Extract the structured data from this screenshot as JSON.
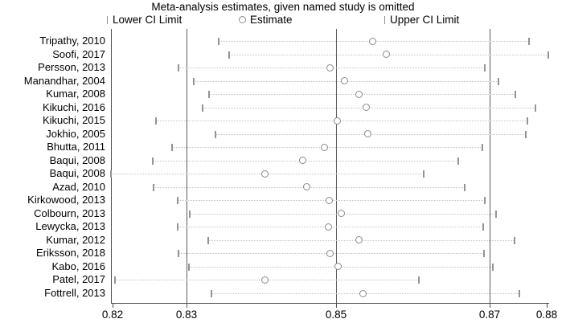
{
  "title": "Meta-analysis estimates, given named study is omitted",
  "legend": {
    "lower_label": "Lower CI Limit",
    "estimate_label": "Estimate",
    "upper_label": "Upper CI Limit"
  },
  "colors": {
    "text": "#000000",
    "axis": "#4d4d4d",
    "reference_line": "#5c5c5c",
    "ci_dotted_line": "#c3c3c3",
    "ci_tick": "#939393",
    "estimate_marker": "#8a8a8a"
  },
  "chart_data": {
    "type": "scatter",
    "title": "Meta-analysis estimates, given named study is omitted",
    "xlabel": "",
    "ylabel": "",
    "legend_entries": [
      "Lower CI Limit",
      "Estimate",
      "Upper CI Limit"
    ],
    "legend_position": "top",
    "grid": false,
    "x_axis": {
      "range": [
        0.82,
        0.88
      ],
      "tick_values": [
        0.82,
        0.8302,
        0.8509,
        0.8721,
        0.88
      ],
      "tick_labels": [
        "0.82",
        "0.83",
        "0.85",
        "0.87",
        "0.88"
      ]
    },
    "reference_lines": [
      0.8302,
      0.8509,
      0.8721
    ],
    "studies": [
      {
        "label": "Tripathy, 2010",
        "lower": 0.8347,
        "estimate": 0.8559,
        "upper": 0.8776
      },
      {
        "label": "Soofi, 2017",
        "lower": 0.8361,
        "estimate": 0.8578,
        "upper": 0.8802
      },
      {
        "label": "Persson, 2013",
        "lower": 0.8291,
        "estimate": 0.8501,
        "upper": 0.8714
      },
      {
        "label": "Manandhar, 2004",
        "lower": 0.8312,
        "estimate": 0.852,
        "upper": 0.8733
      },
      {
        "label": "Kumar, 2008",
        "lower": 0.8333,
        "estimate": 0.8541,
        "upper": 0.8757
      },
      {
        "label": "Kikuchi, 2016",
        "lower": 0.8324,
        "estimate": 0.8551,
        "upper": 0.8784
      },
      {
        "label": "Kikuchi, 2015",
        "lower": 0.826,
        "estimate": 0.851,
        "upper": 0.8773
      },
      {
        "label": "Jokhio, 2005",
        "lower": 0.8342,
        "estimate": 0.8553,
        "upper": 0.8771
      },
      {
        "label": "Bhutta, 2011",
        "lower": 0.8282,
        "estimate": 0.8493,
        "upper": 0.8711
      },
      {
        "label": "Baqui, 2008",
        "lower": 0.8256,
        "estimate": 0.8463,
        "upper": 0.8678
      },
      {
        "label": "Baqui, 2008",
        "lower": 0.8198,
        "estimate": 0.841,
        "upper": 0.863
      },
      {
        "label": "Azad, 2010",
        "lower": 0.8257,
        "estimate": 0.8468,
        "upper": 0.8687
      },
      {
        "label": "Kirkowood, 2013",
        "lower": 0.829,
        "estimate": 0.8499,
        "upper": 0.8714
      },
      {
        "label": "Colbourn, 2013",
        "lower": 0.8307,
        "estimate": 0.8516,
        "upper": 0.873
      },
      {
        "label": "Lewycka, 2013",
        "lower": 0.829,
        "estimate": 0.8498,
        "upper": 0.8712
      },
      {
        "label": "Kumar, 2012",
        "lower": 0.8332,
        "estimate": 0.8541,
        "upper": 0.8756
      },
      {
        "label": "Eriksson, 2018",
        "lower": 0.8291,
        "estimate": 0.8501,
        "upper": 0.8713
      },
      {
        "label": "Kabo, 2016",
        "lower": 0.8306,
        "estimate": 0.8512,
        "upper": 0.8726
      },
      {
        "label": "Patel, 2017",
        "lower": 0.8203,
        "estimate": 0.8411,
        "upper": 0.8623
      },
      {
        "label": "Fottrell, 2013",
        "lower": 0.8337,
        "estimate": 0.8546,
        "upper": 0.8762
      }
    ]
  }
}
